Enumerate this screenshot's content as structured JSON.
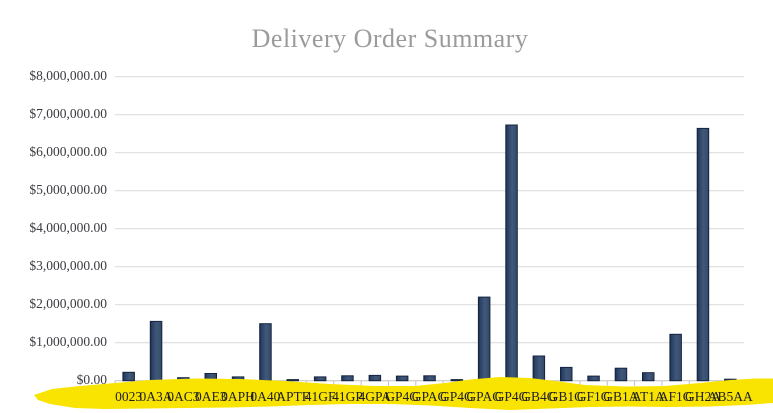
{
  "title": "Delivery Order Summary",
  "colors": {
    "title_text": "#9b9b9b",
    "axis_text": "#3a3a40",
    "x_label_text": "#1f1f22",
    "gridline": "#d9d9d9",
    "axis_line": "#bfbfbf",
    "bar_border": "#152440",
    "bar_gradient": [
      "#1b2e4e",
      "#2c4268",
      "#415878",
      "#33496b"
    ],
    "highlighter_yellow": "#f9e300"
  },
  "annotations": {
    "highlighter": "hand-drawn yellow highlighter stroke across all x-axis labels"
  },
  "chart_data": {
    "type": "bar",
    "title": "Delivery Order Summary",
    "xlabel": "",
    "ylabel": "",
    "ylim": [
      0,
      8000000
    ],
    "ytick_step": 1000000,
    "grid": "horizontal",
    "legend": "none",
    "ytick_labels": [
      "$0.00",
      "$1,000,000.00",
      "$2,000,000.00",
      "$3,000,000.00",
      "$4,000,000.00",
      "$5,000,000.00",
      "$6,000,000.00",
      "$7,000,000.00",
      "$8,000,000.00"
    ],
    "categories": [
      "0023",
      "0A3A",
      "0AC3",
      "0AE3",
      "0APH",
      "0A40",
      "APTF",
      "41GF",
      "41GP",
      "4GPA",
      "GP4G",
      "GPAG",
      "GP4G",
      "GPAG",
      "GP4G",
      "GB4G",
      "GB1G",
      "GF1G",
      "GB1A",
      "AT1A",
      "AF1G",
      "GH2A",
      "AB5AA"
    ],
    "values": [
      220000,
      1560000,
      80000,
      190000,
      100000,
      1500000,
      30000,
      100000,
      130000,
      140000,
      120000,
      130000,
      30000,
      2200000,
      6730000,
      650000,
      350000,
      120000,
      330000,
      210000,
      1220000,
      6640000,
      40000
    ]
  }
}
